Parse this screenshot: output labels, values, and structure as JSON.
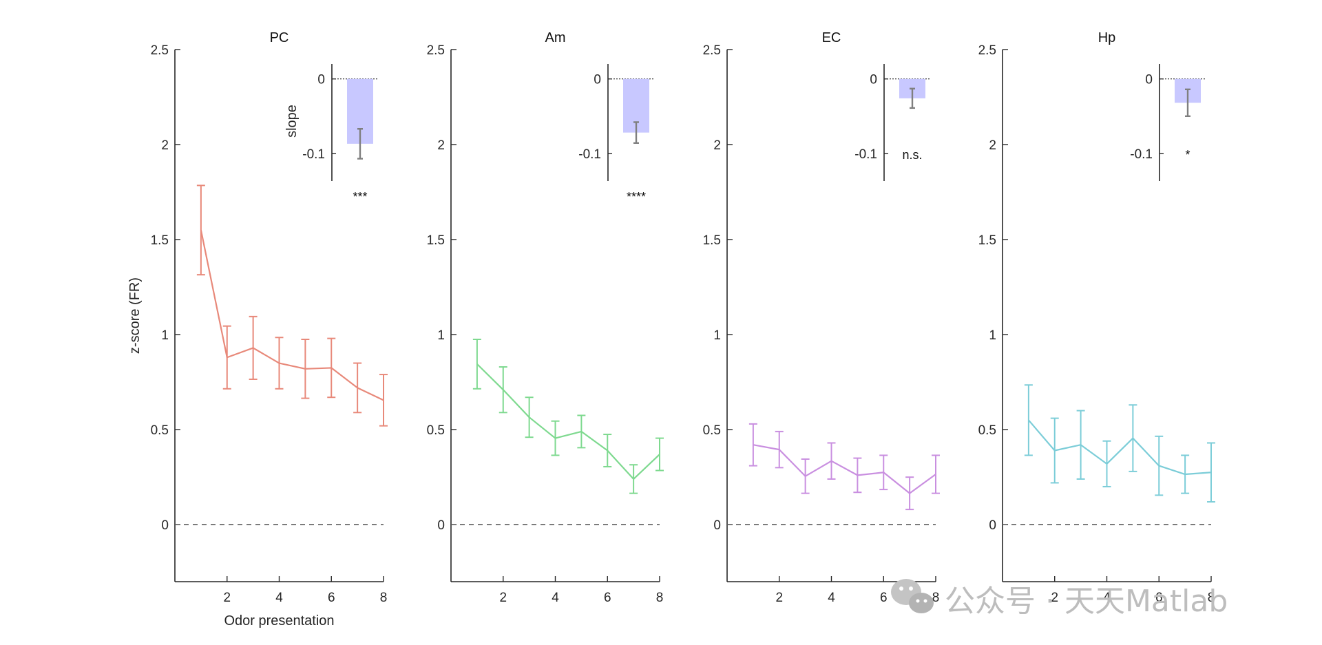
{
  "chart_data": [
    {
      "type": "line",
      "title": "PC",
      "color": "#e8897a",
      "x": [
        1,
        2,
        3,
        4,
        5,
        6,
        7,
        8
      ],
      "y": [
        1.55,
        0.88,
        0.93,
        0.85,
        0.82,
        0.825,
        0.72,
        0.655
      ],
      "y_err": [
        0.235,
        0.165,
        0.165,
        0.135,
        0.155,
        0.155,
        0.13,
        0.135
      ],
      "xlim": [
        0,
        8
      ],
      "ylim": [
        -0.3,
        2.5
      ],
      "xticks": [
        2,
        4,
        6,
        8
      ],
      "yticks": [
        0,
        0.5,
        1,
        1.5,
        2,
        2.5
      ],
      "ytick_labels": [
        "0",
        "0.5",
        "1",
        "1.5",
        "2",
        "2.5"
      ],
      "xlabel": "Odor presentation",
      "ylabel": "z-score (FR)",
      "reference_line": 0,
      "inset": {
        "type": "bar",
        "ylabel": "slope",
        "value": -0.087,
        "err": 0.02,
        "ylim": [
          -0.137,
          0.02
        ],
        "yticks": [
          0,
          -0.1
        ],
        "ytick_labels": [
          "0",
          "-0.1"
        ],
        "significance": "***"
      }
    },
    {
      "type": "line",
      "title": "Am",
      "color": "#7ed98f",
      "x": [
        1,
        2,
        3,
        4,
        5,
        6,
        7,
        8
      ],
      "y": [
        0.845,
        0.71,
        0.565,
        0.455,
        0.49,
        0.39,
        0.24,
        0.37
      ],
      "y_err": [
        0.13,
        0.12,
        0.105,
        0.09,
        0.085,
        0.085,
        0.075,
        0.085
      ],
      "xlim": [
        0,
        8
      ],
      "ylim": [
        -0.3,
        2.5
      ],
      "xticks": [
        2,
        4,
        6,
        8
      ],
      "yticks": [
        0,
        0.5,
        1,
        1.5,
        2,
        2.5
      ],
      "ytick_labels": [
        "0",
        "0.5",
        "1",
        "1.5",
        "2",
        "2.5"
      ],
      "xlabel": "",
      "ylabel": "",
      "reference_line": 0,
      "inset": {
        "type": "bar",
        "ylabel": "",
        "value": -0.072,
        "err": 0.014,
        "ylim": [
          -0.137,
          0.02
        ],
        "yticks": [
          0,
          -0.1
        ],
        "ytick_labels": [
          "0",
          "-0.1"
        ],
        "significance": "****"
      }
    },
    {
      "type": "line",
      "title": "EC",
      "color": "#c98fe0",
      "x": [
        1,
        2,
        3,
        4,
        5,
        6,
        7,
        8
      ],
      "y": [
        0.42,
        0.395,
        0.255,
        0.335,
        0.26,
        0.275,
        0.165,
        0.265
      ],
      "y_err": [
        0.11,
        0.095,
        0.09,
        0.095,
        0.09,
        0.09,
        0.085,
        0.1
      ],
      "xlim": [
        0,
        8
      ],
      "ylim": [
        -0.3,
        2.5
      ],
      "xticks": [
        2,
        4,
        6,
        8
      ],
      "yticks": [
        0,
        0.5,
        1,
        1.5,
        2,
        2.5
      ],
      "ytick_labels": [
        "0",
        "0.5",
        "1",
        "1.5",
        "2",
        "2.5"
      ],
      "xlabel": "",
      "ylabel": "",
      "reference_line": 0,
      "inset": {
        "type": "bar",
        "ylabel": "",
        "value": -0.026,
        "err": 0.013,
        "ylim": [
          -0.137,
          0.02
        ],
        "yticks": [
          0,
          -0.1
        ],
        "ytick_labels": [
          "0",
          "-0.1"
        ],
        "significance": "n.s."
      }
    },
    {
      "type": "line",
      "title": "Hp",
      "color": "#7ccdd8",
      "x": [
        1,
        2,
        3,
        4,
        5,
        6,
        7,
        8
      ],
      "y": [
        0.55,
        0.39,
        0.42,
        0.32,
        0.455,
        0.31,
        0.265,
        0.275
      ],
      "y_err": [
        0.185,
        0.17,
        0.18,
        0.12,
        0.175,
        0.155,
        0.1,
        0.155
      ],
      "xlim": [
        0,
        8
      ],
      "ylim": [
        -0.3,
        2.5
      ],
      "xticks": [
        2,
        4,
        6,
        8
      ],
      "yticks": [
        0,
        0.5,
        1,
        1.5,
        2,
        2.5
      ],
      "ytick_labels": [
        "0",
        "0.5",
        "1",
        "1.5",
        "2",
        "2.5"
      ],
      "xlabel": "",
      "ylabel": "",
      "reference_line": 0,
      "inset": {
        "type": "bar",
        "ylabel": "",
        "value": -0.032,
        "err": 0.018,
        "ylim": [
          -0.137,
          0.02
        ],
        "yticks": [
          0,
          -0.1
        ],
        "ytick_labels": [
          "0",
          "-0.1"
        ],
        "significance": "*"
      }
    }
  ],
  "watermark": {
    "text": "公众号 · 天天Matlab",
    "icon": "wechat-icon"
  }
}
